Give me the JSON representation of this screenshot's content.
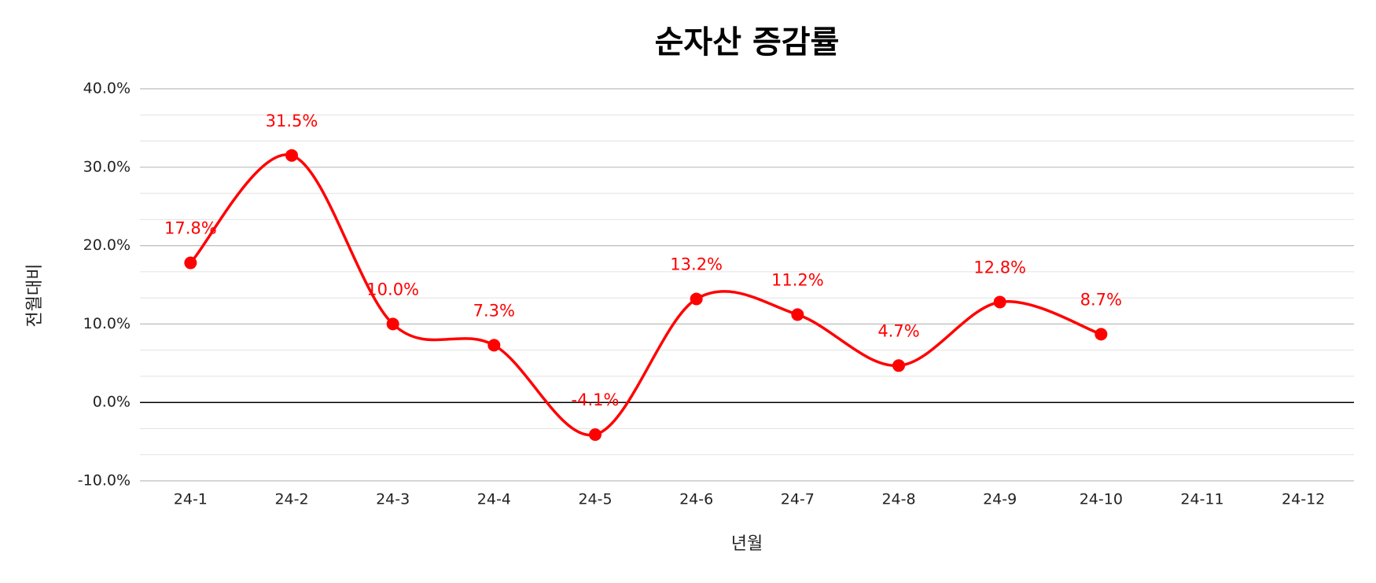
{
  "chart_data": {
    "type": "line",
    "title": "순자산 증감률",
    "x_label": "년월",
    "y_label": "전월대비",
    "categories": [
      "24-1",
      "24-2",
      "24-3",
      "24-4",
      "24-5",
      "24-6",
      "24-7",
      "24-8",
      "24-9",
      "24-10",
      "24-11",
      "24-12"
    ],
    "series": [
      {
        "name": "전월대비",
        "color": "#ff0000",
        "values": [
          17.8,
          31.5,
          10.0,
          7.3,
          -4.1,
          13.2,
          11.2,
          4.7,
          12.8,
          8.7,
          null,
          null
        ],
        "value_labels": [
          "17.8%",
          "31.5%",
          "10.0%",
          "7.3%",
          "-4.1%",
          "13.2%",
          "11.2%",
          "4.7%",
          "12.8%",
          "8.7%",
          null,
          null
        ]
      }
    ],
    "ylim": [
      -10,
      40
    ],
    "yticks": [
      {
        "value": -10,
        "label": "-10.0%"
      },
      {
        "value": 0,
        "label": "0.0%"
      },
      {
        "value": 10,
        "label": "10.0%"
      },
      {
        "value": 20,
        "label": "20.0%"
      },
      {
        "value": 30,
        "label": "30.0%"
      },
      {
        "value": 40,
        "label": "40.0%"
      }
    ],
    "grid": true
  }
}
